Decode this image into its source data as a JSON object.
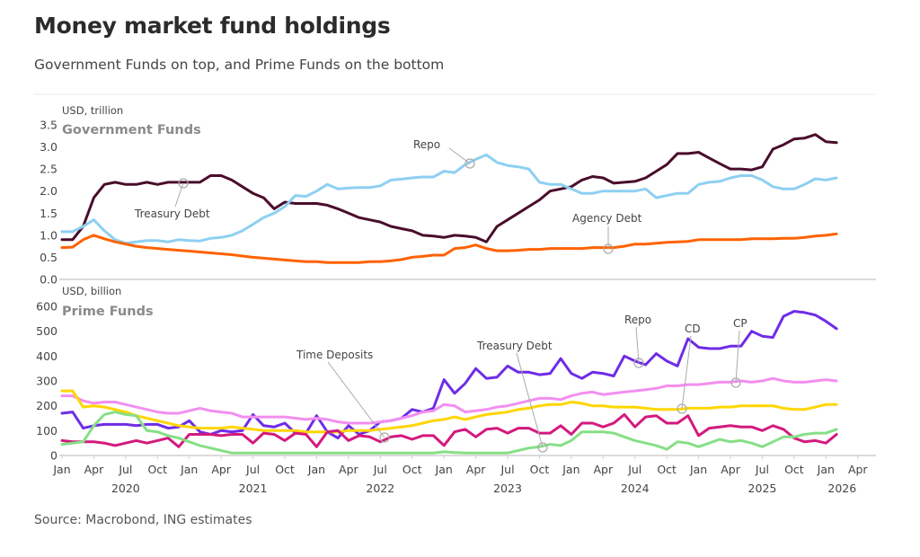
{
  "header": {
    "title": "Money market fund holdings",
    "subtitle": "Government Funds on top, and Prime Funds on the bottom"
  },
  "footer": {
    "source": "Source: Macrobond, ING estimates"
  },
  "chart_data": [
    {
      "type": "line",
      "title": "Government Funds",
      "ylabel": "USD, trillion",
      "ylim": [
        0,
        3.5
      ],
      "yticks": [
        "0.0",
        "0.5",
        "1.0",
        "1.5",
        "2.0",
        "2.5",
        "3.0",
        "3.5"
      ],
      "x_start": "Jan 2020",
      "x_frequency": "monthly",
      "series": [
        {
          "name": "Treasury Debt",
          "color": "#4a0d2c",
          "values": [
            0.9,
            0.9,
            1.2,
            1.85,
            2.15,
            2.2,
            2.15,
            2.15,
            2.2,
            2.15,
            2.2,
            2.2,
            2.2,
            2.2,
            2.35,
            2.35,
            2.25,
            2.1,
            1.95,
            1.85,
            1.6,
            1.75,
            1.72,
            1.72,
            1.72,
            1.68,
            1.6,
            1.5,
            1.4,
            1.35,
            1.3,
            1.2,
            1.15,
            1.1,
            1.0,
            0.98,
            0.95,
            1.0,
            0.98,
            0.95,
            0.85,
            1.2,
            1.35,
            1.5,
            1.65,
            1.8,
            2.0,
            2.05,
            2.1,
            2.25,
            2.33,
            2.3,
            2.18,
            2.2,
            2.22,
            2.3,
            2.45,
            2.6,
            2.85,
            2.85,
            2.88,
            2.75,
            2.62,
            2.5,
            2.5,
            2.48,
            2.55,
            2.95,
            3.05,
            3.18,
            3.2,
            3.28,
            3.12,
            3.1
          ]
        },
        {
          "name": "Repo",
          "color": "#8dd0f2",
          "values": [
            1.08,
            1.08,
            1.2,
            1.35,
            1.1,
            0.9,
            0.82,
            0.85,
            0.88,
            0.88,
            0.85,
            0.9,
            0.88,
            0.87,
            0.93,
            0.95,
            1.0,
            1.1,
            1.25,
            1.4,
            1.5,
            1.65,
            1.9,
            1.88,
            2.0,
            2.15,
            2.05,
            2.07,
            2.08,
            2.08,
            2.12,
            2.25,
            2.27,
            2.3,
            2.32,
            2.32,
            2.45,
            2.42,
            2.6,
            2.72,
            2.82,
            2.65,
            2.58,
            2.55,
            2.5,
            2.2,
            2.15,
            2.15,
            2.05,
            1.95,
            1.95,
            2.0,
            2.0,
            2.0,
            2.0,
            2.05,
            1.85,
            1.9,
            1.95,
            1.95,
            2.15,
            2.2,
            2.22,
            2.3,
            2.35,
            2.35,
            2.25,
            2.1,
            2.05,
            2.05,
            2.15,
            2.28,
            2.25,
            2.3
          ]
        },
        {
          "name": "Agency Debt",
          "color": "#ff6200",
          "values": [
            0.72,
            0.73,
            0.9,
            1.0,
            0.92,
            0.85,
            0.8,
            0.75,
            0.72,
            0.7,
            0.68,
            0.66,
            0.64,
            0.62,
            0.6,
            0.58,
            0.56,
            0.53,
            0.5,
            0.48,
            0.46,
            0.44,
            0.42,
            0.4,
            0.4,
            0.38,
            0.38,
            0.38,
            0.38,
            0.4,
            0.4,
            0.42,
            0.45,
            0.5,
            0.52,
            0.55,
            0.55,
            0.7,
            0.72,
            0.78,
            0.7,
            0.65,
            0.65,
            0.66,
            0.68,
            0.68,
            0.7,
            0.7,
            0.7,
            0.7,
            0.72,
            0.72,
            0.72,
            0.75,
            0.8,
            0.8,
            0.82,
            0.84,
            0.85,
            0.86,
            0.9,
            0.9,
            0.9,
            0.9,
            0.9,
            0.92,
            0.92,
            0.92,
            0.93,
            0.93,
            0.95,
            0.98,
            1.0,
            1.03
          ]
        }
      ]
    },
    {
      "type": "line",
      "title": "Prime Funds",
      "ylabel": "USD, billion",
      "ylim": [
        0,
        600
      ],
      "yticks": [
        "0",
        "100",
        "200",
        "300",
        "400",
        "500",
        "600"
      ],
      "x_start": "Jan 2020",
      "x_frequency": "monthly",
      "xtick_labels": [
        "Jan",
        "Apr",
        "Jul",
        "Oct",
        "Jan",
        "Apr",
        "Jul",
        "Oct",
        "Jan",
        "Apr",
        "Jul",
        "Oct",
        "Jan",
        "Apr",
        "Jul",
        "Oct",
        "Jan",
        "Apr",
        "Jul",
        "Oct",
        "Jan",
        "Apr",
        "Jul",
        "Oct",
        "Jan",
        "Apr"
      ],
      "year_labels": [
        "2020",
        "2021",
        "2022",
        "2023",
        "2024",
        "2025",
        "2026"
      ],
      "series": [
        {
          "name": "Repo",
          "color": "#6f2ce6",
          "values": [
            170,
            175,
            110,
            120,
            125,
            125,
            125,
            120,
            125,
            125,
            110,
            115,
            140,
            95,
            85,
            100,
            95,
            100,
            165,
            120,
            115,
            130,
            90,
            90,
            160,
            95,
            70,
            120,
            85,
            100,
            135,
            140,
            150,
            185,
            175,
            190,
            305,
            250,
            290,
            350,
            310,
            315,
            360,
            335,
            335,
            325,
            330,
            390,
            330,
            310,
            335,
            330,
            320,
            400,
            380,
            365,
            410,
            380,
            360,
            470,
            435,
            430,
            430,
            440,
            440,
            500,
            480,
            475,
            560,
            580,
            575,
            565,
            540,
            510
          ]
        },
        {
          "name": "CP",
          "color": "#f28ff0",
          "values": [
            240,
            240,
            220,
            210,
            215,
            215,
            205,
            195,
            185,
            175,
            170,
            170,
            180,
            190,
            180,
            175,
            170,
            155,
            155,
            155,
            155,
            155,
            150,
            145,
            150,
            145,
            135,
            130,
            130,
            130,
            135,
            140,
            150,
            160,
            175,
            180,
            205,
            200,
            175,
            180,
            185,
            195,
            200,
            210,
            220,
            230,
            230,
            225,
            240,
            250,
            255,
            245,
            250,
            255,
            260,
            265,
            270,
            280,
            280,
            285,
            285,
            290,
            295,
            295,
            300,
            295,
            300,
            310,
            300,
            295,
            295,
            300,
            305,
            300
          ]
        },
        {
          "name": "CD",
          "color": "#ffd600",
          "values": [
            260,
            260,
            195,
            200,
            195,
            185,
            175,
            160,
            150,
            140,
            130,
            120,
            115,
            110,
            110,
            110,
            115,
            110,
            105,
            100,
            100,
            100,
            100,
            95,
            95,
            95,
            95,
            100,
            100,
            100,
            105,
            110,
            115,
            120,
            130,
            140,
            145,
            155,
            145,
            155,
            165,
            170,
            175,
            185,
            190,
            200,
            205,
            205,
            215,
            210,
            200,
            200,
            195,
            195,
            195,
            190,
            185,
            185,
            185,
            190,
            190,
            190,
            195,
            195,
            200,
            200,
            200,
            200,
            190,
            185,
            185,
            195,
            205,
            205
          ]
        },
        {
          "name": "Treasury Debt",
          "color": "#d3197e",
          "values": [
            60,
            55,
            55,
            55,
            50,
            40,
            50,
            60,
            50,
            60,
            70,
            35,
            85,
            85,
            85,
            80,
            85,
            85,
            50,
            90,
            85,
            60,
            90,
            85,
            35,
            95,
            100,
            60,
            80,
            75,
            55,
            75,
            80,
            65,
            80,
            80,
            40,
            95,
            105,
            75,
            105,
            110,
            90,
            110,
            110,
            90,
            90,
            120,
            85,
            130,
            130,
            115,
            130,
            165,
            115,
            155,
            160,
            130,
            130,
            160,
            80,
            110,
            115,
            120,
            115,
            115,
            100,
            120,
            105,
            70,
            55,
            60,
            50,
            85
          ]
        },
        {
          "name": "Time Deposits",
          "color": "#86df86",
          "values": [
            45,
            50,
            55,
            120,
            165,
            175,
            165,
            160,
            100,
            95,
            80,
            70,
            55,
            40,
            30,
            20,
            10,
            10,
            10,
            10,
            10,
            10,
            10,
            10,
            10,
            10,
            10,
            10,
            10,
            10,
            10,
            10,
            10,
            10,
            10,
            10,
            15,
            12,
            10,
            10,
            10,
            10,
            10,
            20,
            30,
            35,
            45,
            40,
            60,
            95,
            95,
            95,
            90,
            75,
            60,
            50,
            40,
            25,
            55,
            50,
            35,
            50,
            65,
            55,
            60,
            50,
            35,
            55,
            75,
            75,
            85,
            90,
            90,
            105
          ]
        }
      ]
    }
  ]
}
